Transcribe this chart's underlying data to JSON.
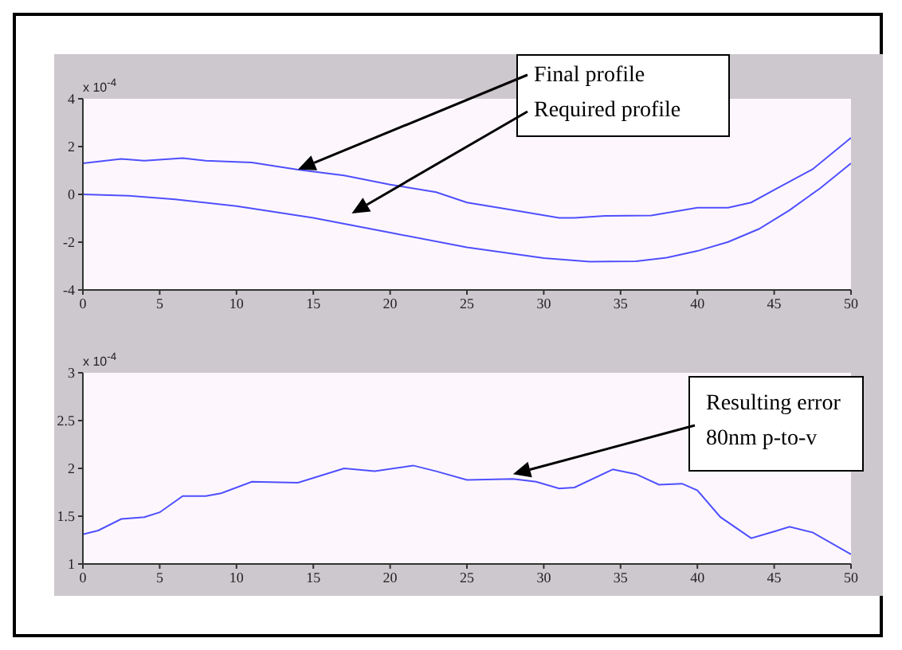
{
  "chart_data": [
    {
      "type": "line",
      "xlim": [
        0,
        50
      ],
      "xticks": [
        0,
        5,
        10,
        15,
        20,
        25,
        30,
        35,
        40,
        45,
        50
      ],
      "ylim": [
        -4,
        4
      ],
      "yticks": [
        -4,
        -2,
        0,
        2,
        4
      ],
      "annotations": [
        "x 10$^{-4}$",
        "Final profile",
        "Required profile"
      ],
      "series": [
        {
          "color": "#4f4fff",
          "x": [
            0,
            2.5,
            4,
            6.5,
            8,
            11,
            14,
            17,
            20,
            23,
            25,
            28,
            31,
            32,
            34,
            37,
            40,
            42,
            43.5,
            45,
            47.5,
            50
          ],
          "values": [
            1.3,
            1.48,
            1.41,
            1.52,
            1.41,
            1.33,
            1.03,
            0.79,
            0.41,
            0.09,
            -0.34,
            -0.66,
            -0.98,
            -0.98,
            -0.9,
            -0.88,
            -0.56,
            -0.56,
            -0.34,
            0.19,
            1.05,
            2.37
          ]
        },
        {
          "color": "#4f4fff",
          "x": [
            0,
            3,
            6,
            10,
            15,
            20,
            25,
            30,
            33,
            36,
            38,
            40,
            42,
            44,
            46,
            48,
            50
          ],
          "values": [
            0,
            -0.06,
            -0.21,
            -0.49,
            -0.98,
            -1.6,
            -2.22,
            -2.67,
            -2.82,
            -2.8,
            -2.65,
            -2.37,
            -1.99,
            -1.45,
            -0.66,
            0.26,
            1.3
          ]
        }
      ]
    },
    {
      "type": "line",
      "xlim": [
        0,
        50
      ],
      "xticks": [
        0,
        5,
        10,
        15,
        20,
        25,
        30,
        35,
        40,
        45,
        50
      ],
      "ylim": [
        1,
        3
      ],
      "yticks": [
        1,
        1.5,
        2,
        2.5,
        3
      ],
      "annotations": [
        "x 10$^{-4}$",
        "Resulting error\n80nm p-to-v"
      ],
      "series": [
        {
          "color": "#4f4fff",
          "x": [
            0,
            1,
            2.5,
            4,
            5,
            6.5,
            8,
            9,
            11,
            14,
            15,
            17,
            19,
            21.5,
            23,
            25,
            28,
            29.5,
            31,
            32,
            34.5,
            36,
            37.5,
            39,
            40,
            41.5,
            43.5,
            45,
            46,
            47.5,
            50
          ],
          "values": [
            1.31,
            1.35,
            1.47,
            1.49,
            1.54,
            1.71,
            1.71,
            1.74,
            1.86,
            1.85,
            1.9,
            2.0,
            1.97,
            2.03,
            1.97,
            1.88,
            1.89,
            1.86,
            1.79,
            1.8,
            1.99,
            1.94,
            1.83,
            1.84,
            1.77,
            1.49,
            1.27,
            1.34,
            1.39,
            1.33,
            1.1
          ]
        }
      ]
    }
  ]
}
